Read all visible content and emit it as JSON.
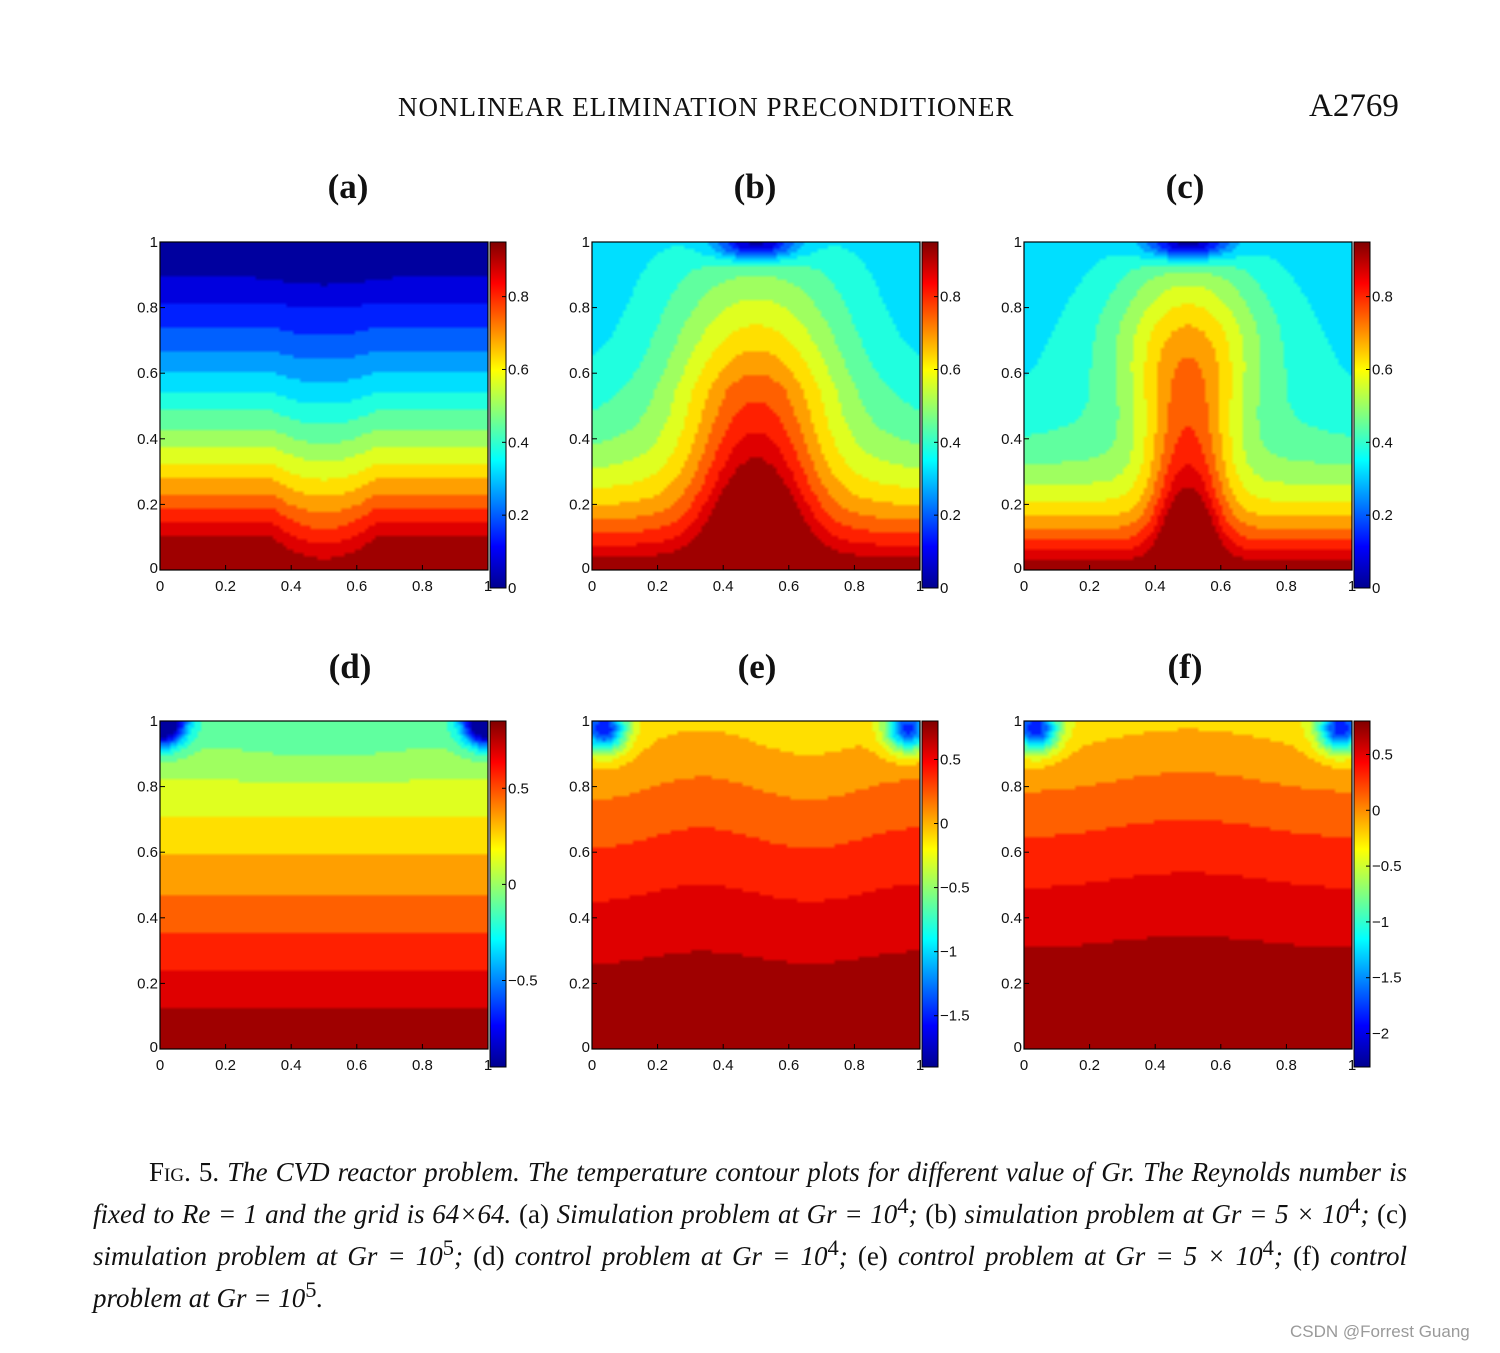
{
  "header": {
    "running_title": "NONLINEAR ELIMINATION PRECONDITIONER",
    "page_number": "A2769"
  },
  "colors": {
    "jet_low": "#00008f",
    "jet_mid": "#80ff80",
    "jet_high": "#800000",
    "background": "#ffffff",
    "watermark": "#9a9a9a"
  },
  "panels": [
    {
      "label": "(a)",
      "problem": "simulation",
      "colorbar_ticks": [
        "0",
        "0.2",
        "0.4",
        "0.6",
        "0.8"
      ]
    },
    {
      "label": "(b)",
      "problem": "simulation",
      "colorbar_ticks": [
        "0",
        "0.2",
        "0.4",
        "0.6",
        "0.8"
      ]
    },
    {
      "label": "(c)",
      "problem": "simulation",
      "colorbar_ticks": [
        "0",
        "0.2",
        "0.4",
        "0.6",
        "0.8"
      ]
    },
    {
      "label": "(d)",
      "problem": "control",
      "colorbar_ticks": [
        "-0.5",
        "0",
        "0.5"
      ]
    },
    {
      "label": "(e)",
      "problem": "control",
      "colorbar_ticks": [
        "-1.5",
        "-1",
        "-0.5",
        "0",
        "0.5"
      ]
    },
    {
      "label": "(f)",
      "problem": "control",
      "colorbar_ticks": [
        "-2",
        "-1.5",
        "-1",
        "-0.5",
        "0",
        "0.5"
      ]
    }
  ],
  "axis_ticks": [
    "0",
    "0.2",
    "0.4",
    "0.6",
    "0.8",
    "1"
  ],
  "chart_data": [
    {
      "type": "heatmap",
      "title": "(a)",
      "xlim": [
        0,
        1
      ],
      "ylim": [
        0,
        1
      ],
      "colorbar_range": [
        0,
        0.95
      ],
      "xlabel": "",
      "ylabel": ""
    },
    {
      "type": "heatmap",
      "title": "(b)",
      "xlim": [
        0,
        1
      ],
      "ylim": [
        0,
        1
      ],
      "colorbar_range": [
        0,
        0.95
      ],
      "xlabel": "",
      "ylabel": ""
    },
    {
      "type": "heatmap",
      "title": "(c)",
      "xlim": [
        0,
        1
      ],
      "ylim": [
        0,
        1
      ],
      "colorbar_range": [
        0,
        0.95
      ],
      "xlabel": "",
      "ylabel": ""
    },
    {
      "type": "heatmap",
      "title": "(d)",
      "xlim": [
        0,
        1
      ],
      "ylim": [
        0,
        1
      ],
      "colorbar_range": [
        -0.95,
        0.85
      ],
      "xlabel": "",
      "ylabel": ""
    },
    {
      "type": "heatmap",
      "title": "(e)",
      "xlim": [
        0,
        1
      ],
      "ylim": [
        0,
        1
      ],
      "colorbar_range": [
        -1.9,
        0.8
      ],
      "xlabel": "",
      "ylabel": ""
    },
    {
      "type": "heatmap",
      "title": "(f)",
      "xlim": [
        0,
        1
      ],
      "ylim": [
        0,
        1
      ],
      "colorbar_range": [
        -2.3,
        0.8
      ],
      "xlabel": "",
      "ylabel": ""
    }
  ],
  "caption": {
    "fig_label": "Fig. 5.",
    "s1": "The CVD reactor problem.  The temperature contour plots for different value of Gr.",
    "s2": "The Reynolds number is fixed to Re = 1 and the grid is 64×64.",
    "a_tag": "(a)",
    "a_text": "Simulation problem at Gr = 10",
    "b_tag": "(b)",
    "b_text": "simulation problem at Gr = 5 × 10",
    "c_tag": "(c)",
    "c_text": "simulation problem at Gr = 10",
    "d_tag": "(d)",
    "d_text": "control problem at Gr = 10",
    "e_tag": "(e)",
    "e_text": "control problem at Gr = 5 × 10",
    "f_tag": "(f)",
    "f_text": "control problem at Gr = 10",
    "exp4": "4",
    "exp5": "5",
    "sep": ";",
    "end": "."
  },
  "watermark": "CSDN @Forrest Guang"
}
